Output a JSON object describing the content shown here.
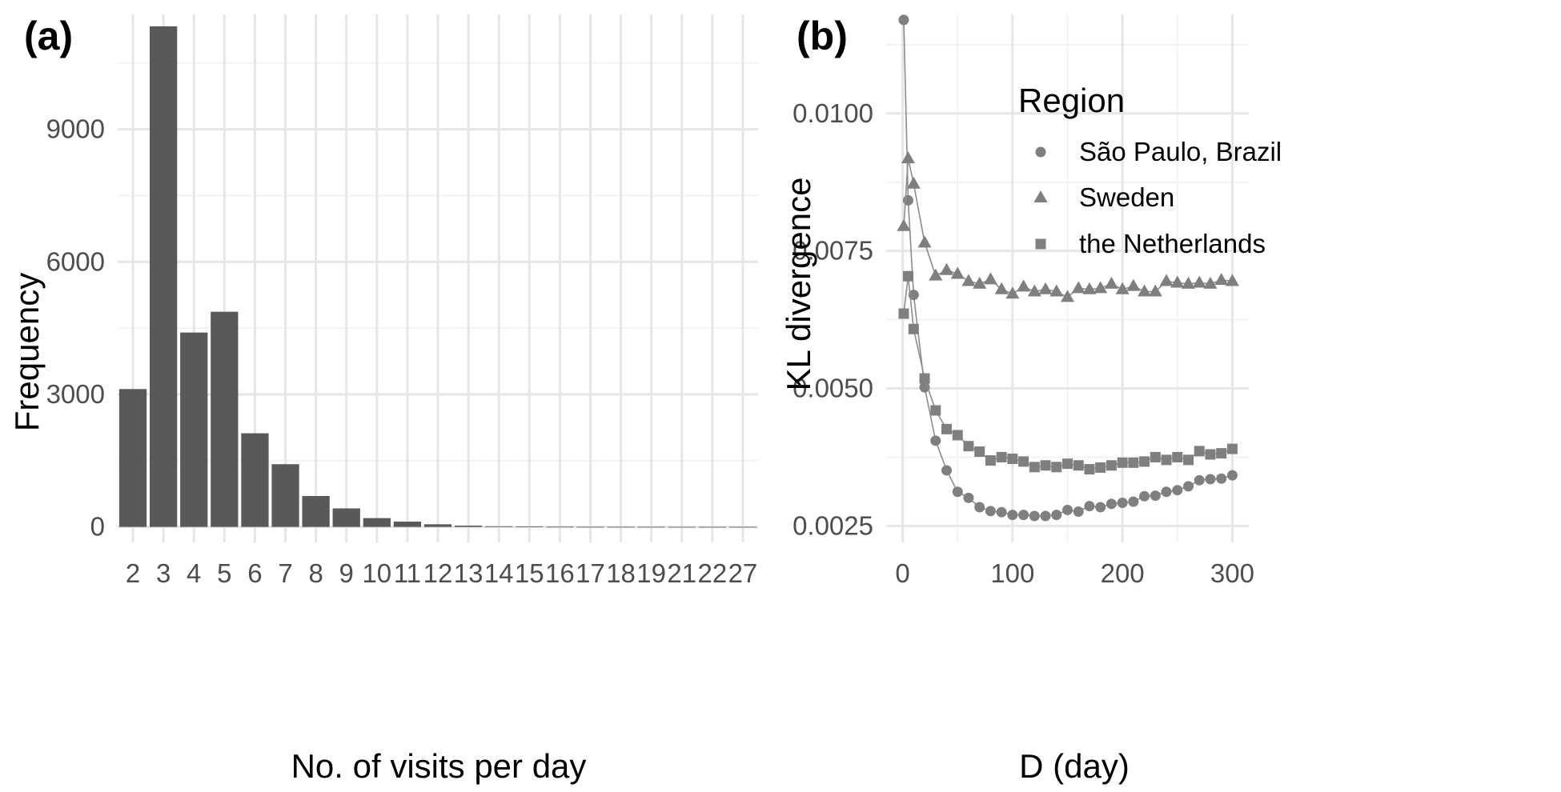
{
  "chart_data": [
    {
      "panel_label": "(a)",
      "type": "bar",
      "xlabel": "No. of visits per day",
      "ylabel": "Frequency",
      "categories": [
        "2",
        "3",
        "4",
        "5",
        "6",
        "7",
        "8",
        "9",
        "10",
        "11",
        "12",
        "13",
        "14",
        "15",
        "16",
        "17",
        "18",
        "19",
        "21",
        "22",
        "27"
      ],
      "values": [
        3120,
        11330,
        4400,
        4870,
        2120,
        1420,
        700,
        420,
        200,
        120,
        60,
        30,
        15,
        8,
        5,
        3,
        2,
        2,
        1,
        1,
        1
      ],
      "ylim": [
        -350,
        11600
      ],
      "yticks": [
        0,
        3000,
        6000,
        9000
      ],
      "ytick_labels": [
        "0",
        "3000",
        "6000",
        "9000"
      ],
      "bar_color": "#595959",
      "grid": true
    },
    {
      "panel_label": "(b)",
      "type": "scatter",
      "xlabel": "D (day)",
      "ylabel": "KL divergence",
      "xlim": [
        -15,
        315
      ],
      "ylim": [
        0.0022,
        0.0118
      ],
      "xticks": [
        0,
        100,
        200,
        300
      ],
      "xtick_labels": [
        "0",
        "100",
        "200",
        "300"
      ],
      "yticks": [
        0.0025,
        0.005,
        0.0075,
        0.01
      ],
      "ytick_labels": [
        "0.0025",
        "0.0050",
        "0.0075",
        "0.0100"
      ],
      "legend_title": "Region",
      "legend_position": "top-right",
      "point_color": "#7f7f7f",
      "line_color": "#8c8c8c",
      "grid": true,
      "series": [
        {
          "name": "São Paulo, Brazil",
          "marker": "circle",
          "x": [
            1,
            5,
            10,
            20,
            30,
            40,
            50,
            60,
            70,
            80,
            90,
            100,
            110,
            120,
            130,
            140,
            150,
            160,
            170,
            180,
            190,
            200,
            210,
            220,
            230,
            240,
            250,
            260,
            270,
            280,
            290,
            300
          ],
          "y": [
            0.0117,
            0.00842,
            0.0067,
            0.00502,
            0.00405,
            0.00351,
            0.00312,
            0.00301,
            0.00284,
            0.00277,
            0.00275,
            0.0027,
            0.0027,
            0.00268,
            0.00268,
            0.0027,
            0.00279,
            0.00276,
            0.00286,
            0.00284,
            0.0029,
            0.00292,
            0.00294,
            0.00304,
            0.00305,
            0.00312,
            0.00315,
            0.00322,
            0.00333,
            0.00335,
            0.00336,
            0.00342
          ]
        },
        {
          "name": "Sweden",
          "marker": "triangle",
          "x": [
            1,
            5,
            10,
            20,
            30,
            40,
            50,
            60,
            70,
            80,
            90,
            100,
            110,
            120,
            130,
            140,
            150,
            160,
            170,
            180,
            190,
            200,
            210,
            220,
            230,
            240,
            250,
            260,
            270,
            280,
            290,
            300
          ],
          "y": [
            0.00795,
            0.00918,
            0.00872,
            0.00765,
            0.00705,
            0.00715,
            0.00708,
            0.00695,
            0.0069,
            0.00698,
            0.0068,
            0.00672,
            0.00685,
            0.00676,
            0.0068,
            0.00676,
            0.00666,
            0.00682,
            0.0068,
            0.00682,
            0.0069,
            0.0068,
            0.00686,
            0.00676,
            0.00676,
            0.00695,
            0.00692,
            0.0069,
            0.00692,
            0.0069,
            0.00697,
            0.00695
          ]
        },
        {
          "name": "the Netherlands",
          "marker": "square",
          "x": [
            1,
            5,
            10,
            20,
            30,
            40,
            50,
            60,
            70,
            80,
            90,
            100,
            110,
            120,
            130,
            140,
            150,
            160,
            170,
            180,
            190,
            200,
            210,
            220,
            230,
            240,
            250,
            260,
            270,
            280,
            290,
            300
          ],
          "y": [
            0.00636,
            0.00704,
            0.00608,
            0.00518,
            0.0046,
            0.00426,
            0.00415,
            0.00395,
            0.00385,
            0.00369,
            0.00375,
            0.00372,
            0.00367,
            0.00357,
            0.0036,
            0.00357,
            0.00363,
            0.0036,
            0.00353,
            0.00356,
            0.0036,
            0.00365,
            0.00365,
            0.00367,
            0.00375,
            0.0037,
            0.00375,
            0.0037,
            0.00386,
            0.0038,
            0.00382,
            0.0039
          ]
        }
      ]
    }
  ]
}
